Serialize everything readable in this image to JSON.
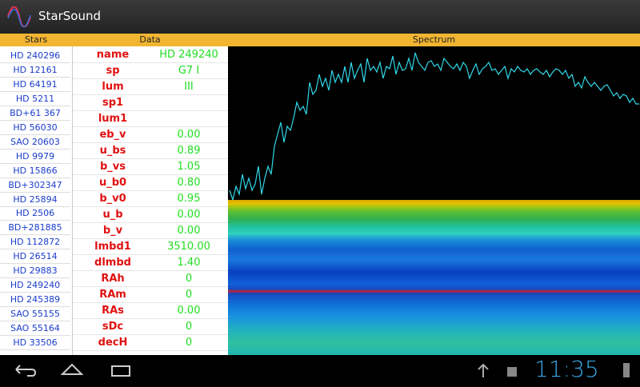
{
  "app_bar": {
    "title": "StarSound"
  },
  "columns": {
    "stars": "Stars",
    "data": "Data",
    "spectrum": "Spectrum"
  },
  "stars": [
    "HD 240296",
    "HD 12161",
    "HD 64191",
    "HD 5211",
    "BD+61 367",
    "HD 56030",
    "SAO 20603",
    "HD 9979",
    "HD 15866",
    "BD+302347",
    "HD 25894",
    "HD 2506",
    "BD+281885",
    "HD 112872",
    "HD 26514",
    "HD 29883",
    "HD 249240",
    "HD 245389",
    "SAO 55155",
    "SAO 55164",
    "HD 33506"
  ],
  "data_rows": [
    {
      "label": "name",
      "value": "HD 249240"
    },
    {
      "label": "sp",
      "value": "G7 I"
    },
    {
      "label": "lum",
      "value": "III"
    },
    {
      "label": "sp1"
    },
    {
      "label": "lum1"
    },
    {
      "label": "eb_v",
      "value": "0.00"
    },
    {
      "label": "u_bs",
      "value": "0.89"
    },
    {
      "label": "b_vs",
      "value": "1.05"
    },
    {
      "label": "u_b0",
      "value": "0.80"
    },
    {
      "label": "b_v0",
      "value": "0.95"
    },
    {
      "label": "u_b",
      "value": "0.00"
    },
    {
      "label": "b_v",
      "value": "0.00"
    },
    {
      "label": "lmbd1",
      "value": "3510.00"
    },
    {
      "label": "dlmbd",
      "value": "1.40"
    },
    {
      "label": "RAh",
      "value": "0"
    },
    {
      "label": "RAm",
      "value": "0"
    },
    {
      "label": "RAs",
      "value": "0.00"
    },
    {
      "label": "sDc",
      "value": "0"
    },
    {
      "label": "decH",
      "value": "0"
    }
  ],
  "status_bar": {
    "time": "11:35"
  }
}
